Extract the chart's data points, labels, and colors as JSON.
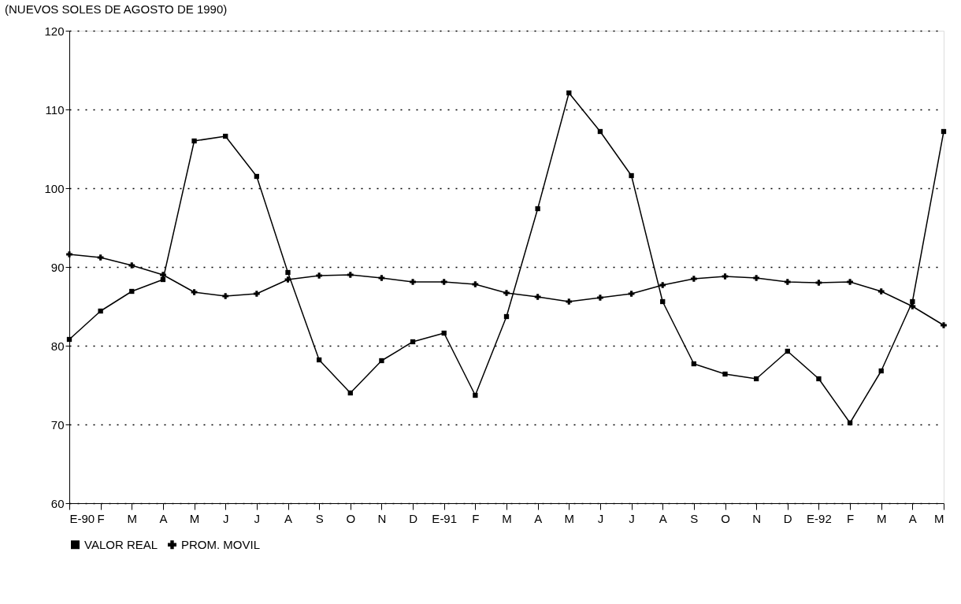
{
  "chart_data": {
    "type": "line",
    "title": "(NUEVOS SOLES DE AGOSTO DE 1990)",
    "categories": [
      "E-90",
      "F",
      "M",
      "A",
      "M",
      "J",
      "J",
      "A",
      "S",
      "O",
      "N",
      "D",
      "E-91",
      "F",
      "M",
      "A",
      "M",
      "J",
      "J",
      "A",
      "S",
      "O",
      "N",
      "D",
      "E-92",
      "F",
      "M",
      "A",
      "M"
    ],
    "series": [
      {
        "name": "VALOR REAL",
        "color": "#000000",
        "marker": "square",
        "values": [
          80.8,
          84.4,
          86.9,
          88.4,
          106.0,
          106.6,
          101.5,
          89.3,
          78.2,
          74.0,
          78.1,
          80.5,
          81.6,
          73.7,
          83.7,
          97.4,
          112.1,
          107.2,
          101.6,
          85.6,
          77.7,
          76.4,
          75.8,
          79.3,
          75.8,
          70.2,
          76.8,
          85.6,
          107.2
        ]
      },
      {
        "name": "PROM. MOVIL",
        "color": "#000000",
        "marker": "cross",
        "values": [
          91.6,
          91.2,
          90.2,
          89.0,
          86.8,
          86.3,
          86.6,
          88.4,
          88.9,
          89.0,
          88.6,
          88.1,
          88.1,
          87.8,
          86.7,
          86.2,
          85.6,
          86.1,
          86.6,
          87.7,
          88.5,
          88.8,
          88.6,
          88.1,
          88.0,
          88.1,
          86.9,
          85.0,
          82.6
        ]
      }
    ],
    "ylim": [
      60,
      120
    ],
    "yticks": [
      60,
      70,
      80,
      90,
      100,
      110,
      120
    ],
    "grid": "y",
    "legend": "bottom",
    "line_style": "solid"
  }
}
